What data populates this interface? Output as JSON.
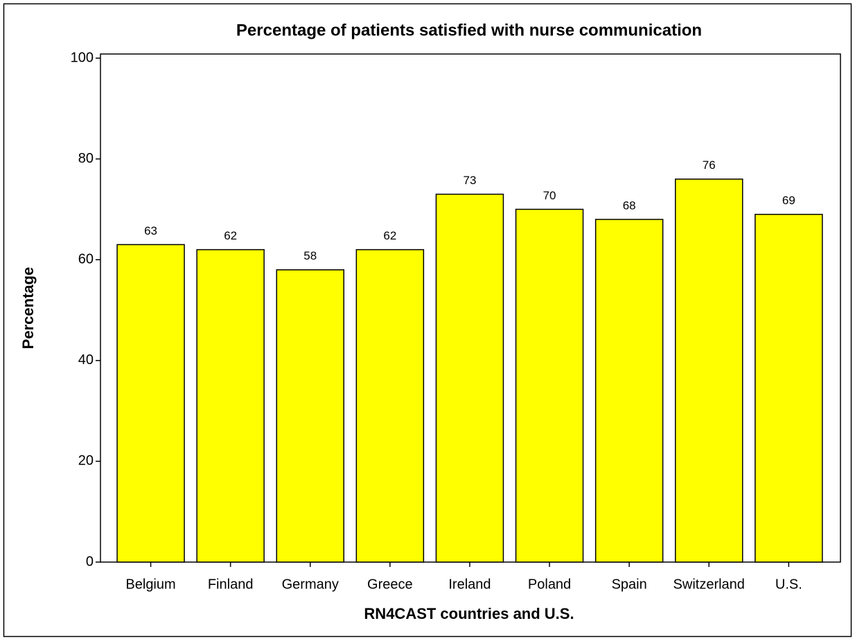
{
  "chart_data": {
    "type": "bar",
    "title": "Percentage of patients satisfied with nurse communication",
    "x_label": "RN4CAST countries and U.S.",
    "y_label": "Percentage",
    "categories": [
      "Belgium",
      "Finland",
      "Germany",
      "Greece",
      "Ireland",
      "Poland",
      "Spain",
      "Switzerland",
      "U.S."
    ],
    "values": [
      63,
      62,
      58,
      62,
      73,
      70,
      68,
      76,
      69
    ],
    "color": "#ffff00",
    "ylim": [
      0,
      100
    ],
    "yticks": [
      0,
      20,
      40,
      60,
      80,
      100
    ],
    "grid": false
  }
}
